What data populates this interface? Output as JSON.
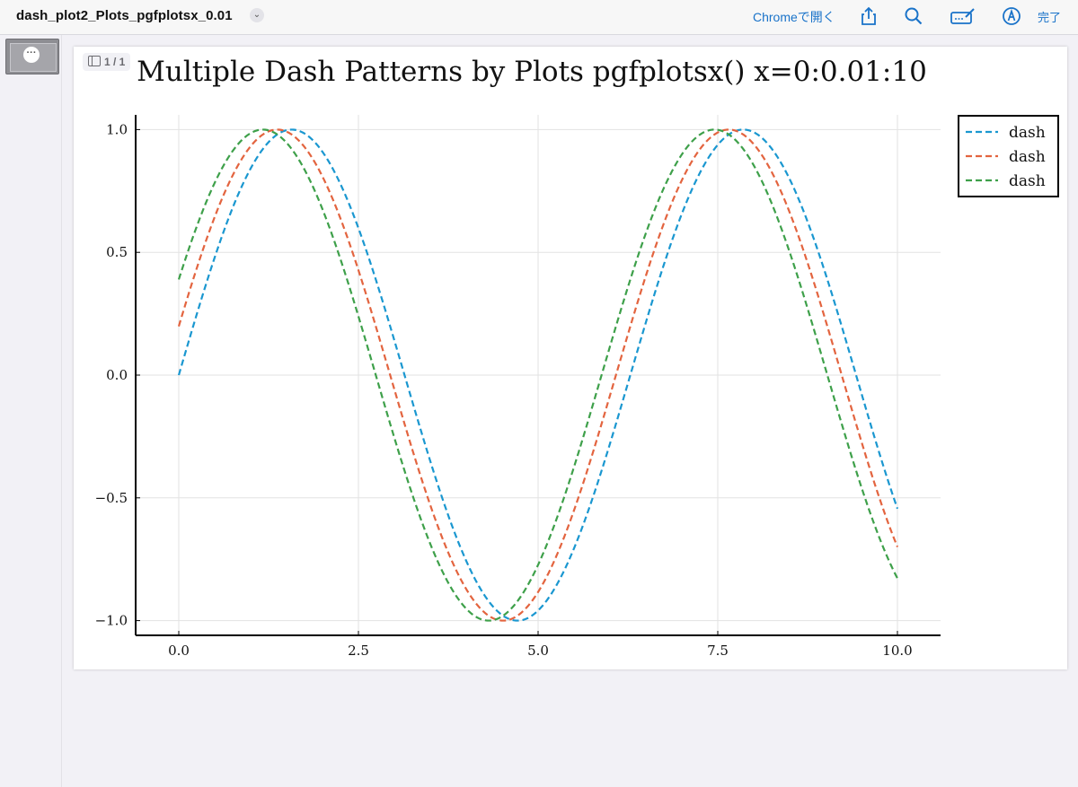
{
  "toolbar": {
    "doc_title": "dash_plot2_Plots_pgfplotsx_0.01",
    "open_in": "Chromeで開く",
    "done": "完了",
    "page_indicator": "1 / 1"
  },
  "icons": [
    "chevron-down-icon",
    "share-icon",
    "search-icon",
    "markup-icon",
    "pen-icon",
    "more-icon",
    "sidebar-toggle-icon"
  ],
  "colors": {
    "accent": "#1a73c9",
    "series1": "#1a97d0",
    "series2": "#e3643f",
    "series3": "#3ea04a"
  },
  "chart_data": {
    "type": "line",
    "title": "Multiple Dash Patterns by Plots pgfplotsx() x=0:0.01:10",
    "xlabel": "",
    "ylabel": "",
    "xlim": [
      -0.6,
      10.6
    ],
    "ylim": [
      -1.06,
      1.06
    ],
    "xticks": [
      "0.0",
      "2.5",
      "5.0",
      "7.5",
      "10.0"
    ],
    "yticks": [
      "1.0",
      "0.5",
      "0.0",
      "−0.5",
      "−1.0"
    ],
    "xtick_values": [
      0,
      2.5,
      5,
      7.5,
      10
    ],
    "ytick_values": [
      1,
      0.5,
      0,
      -0.5,
      -1
    ],
    "grid": true,
    "legend_position": "outer-top-right",
    "x_range": {
      "start": 0,
      "step": 0.01,
      "end": 10
    },
    "series": [
      {
        "name": "dash",
        "function": "sin(x)",
        "line_style": "dash"
      },
      {
        "name": "dash",
        "function": "sin(x + 0.2)",
        "line_style": "dash"
      },
      {
        "name": "dash",
        "function": "sin(x + 0.4)",
        "line_style": "dash"
      }
    ]
  }
}
